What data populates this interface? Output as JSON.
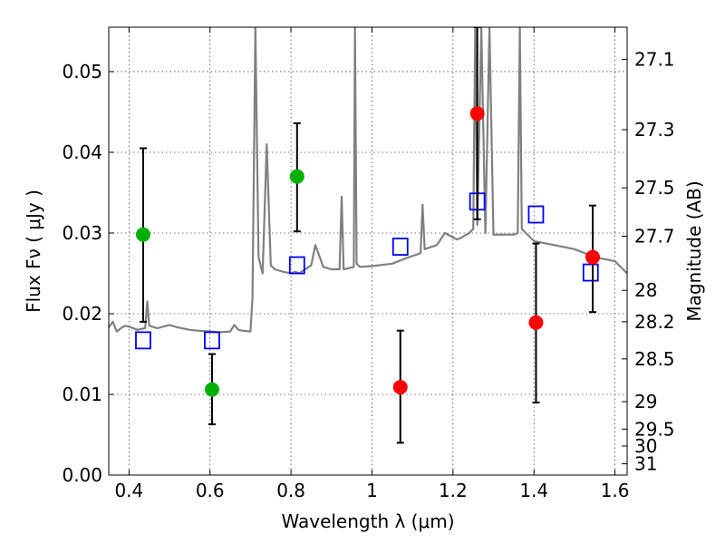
{
  "chart_data": {
    "type": "scatter",
    "xlabel": "Wavelength  λ (μm)",
    "ylabel": "Flux  Fν  ( μJy )",
    "ylabel_right": "Magnitude (AB)",
    "xlim": [
      0.35,
      1.63
    ],
    "ylim": [
      0.0,
      0.0555
    ],
    "grid": true,
    "x_ticks": [
      0.4,
      0.6,
      0.8,
      1.0,
      1.2,
      1.4,
      1.6
    ],
    "x_tick_labels": [
      "0.4",
      "0.6",
      "0.8",
      "1",
      "1.2",
      "1.4",
      "1.6"
    ],
    "y_ticks": [
      0.0,
      0.01,
      0.02,
      0.03,
      0.04,
      0.05
    ],
    "y_tick_labels": [
      "0.00",
      "0.01",
      "0.02",
      "0.03",
      "0.04",
      "0.05"
    ],
    "right_ticks": [
      {
        "label": "27.1",
        "flux": 0.0515
      },
      {
        "label": "27.3",
        "flux": 0.0428
      },
      {
        "label": "27.5",
        "flux": 0.0356
      },
      {
        "label": "27.7",
        "flux": 0.0296
      },
      {
        "label": "28",
        "flux": 0.0229
      },
      {
        "label": "28.2",
        "flux": 0.019
      },
      {
        "label": "28.5",
        "flux": 0.0144
      },
      {
        "label": "29",
        "flux": 0.0091
      },
      {
        "label": "29.5",
        "flux": 0.0057
      },
      {
        "label": "30",
        "flux": 0.0036
      },
      {
        "label": "31",
        "flux": 0.0014
      }
    ],
    "series": [
      {
        "role": "model-spectrum",
        "color": "#808080",
        "x": [
          0.35,
          0.36,
          0.37,
          0.38,
          0.39,
          0.4,
          0.42,
          0.44,
          0.445,
          0.45,
          0.47,
          0.5,
          0.52,
          0.55,
          0.57,
          0.6,
          0.62,
          0.65,
          0.66,
          0.67,
          0.68,
          0.7,
          0.705,
          0.712,
          0.72,
          0.73,
          0.74,
          0.75,
          0.76,
          0.78,
          0.8,
          0.81,
          0.82,
          0.85,
          0.86,
          0.88,
          0.9,
          0.92,
          0.925,
          0.93,
          0.94,
          0.955,
          0.958,
          0.962,
          0.97,
          1.0,
          1.05,
          1.08,
          1.12,
          1.125,
          1.13,
          1.16,
          1.18,
          1.21,
          1.22,
          1.24,
          1.25,
          1.255,
          1.26,
          1.27,
          1.28,
          1.29,
          1.3,
          1.35,
          1.36,
          1.365,
          1.37,
          1.4,
          1.45,
          1.5,
          1.55,
          1.6,
          1.63
        ],
        "y": [
          0.0183,
          0.019,
          0.0178,
          0.0182,
          0.0185,
          0.0184,
          0.018,
          0.0182,
          0.0215,
          0.0185,
          0.0182,
          0.0186,
          0.0183,
          0.018,
          0.0179,
          0.0178,
          0.0177,
          0.0178,
          0.0186,
          0.018,
          0.0179,
          0.0178,
          0.022,
          0.0555,
          0.027,
          0.025,
          0.041,
          0.026,
          0.0255,
          0.0252,
          0.025,
          0.0252,
          0.025,
          0.026,
          0.0285,
          0.0258,
          0.0255,
          0.0255,
          0.0345,
          0.0255,
          0.0256,
          0.0258,
          0.0555,
          0.0262,
          0.0258,
          0.0259,
          0.0262,
          0.0268,
          0.0275,
          0.0335,
          0.028,
          0.0285,
          0.03,
          0.0292,
          0.0294,
          0.03,
          0.0305,
          0.0555,
          0.031,
          0.0555,
          0.03,
          0.0555,
          0.0298,
          0.0298,
          0.03,
          0.0555,
          0.0305,
          0.029,
          0.0285,
          0.028,
          0.027,
          0.0265,
          0.025
        ]
      },
      {
        "role": "model-photometry",
        "marker": "open-square",
        "color": "#0000ff",
        "x": [
          0.435,
          0.605,
          0.815,
          1.07,
          1.26,
          1.405,
          1.54
        ],
        "y": [
          0.0167,
          0.0167,
          0.026,
          0.0283,
          0.0339,
          0.0323,
          0.0251
        ]
      },
      {
        "role": "detections-green",
        "marker": "circle",
        "color": "#00b000",
        "x": [
          0.435,
          0.605,
          0.815
        ],
        "y": [
          0.0298,
          0.0106,
          0.037
        ],
        "yerr_low": [
          0.019,
          0.0063,
          0.0302
        ],
        "yerr_high": [
          0.0405,
          0.015,
          0.0436
        ]
      },
      {
        "role": "detections-red",
        "marker": "circle",
        "color": "#ff0000",
        "x": [
          1.07,
          1.26,
          1.405,
          1.545
        ],
        "y": [
          0.0109,
          0.0448,
          0.0189,
          0.027
        ],
        "yerr_low": [
          0.004,
          0.0317,
          0.009,
          0.0202
        ],
        "yerr_high": [
          0.0179,
          0.0555,
          0.0287,
          0.0334
        ]
      }
    ]
  }
}
